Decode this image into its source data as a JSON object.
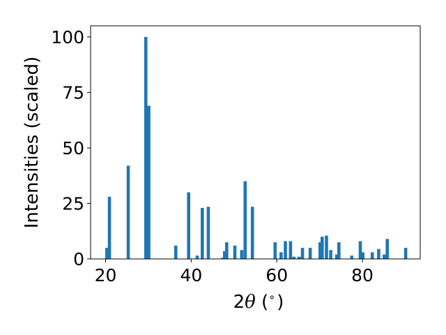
{
  "chart_data": {
    "type": "bar",
    "title": "",
    "xlabel_parts": {
      "prefix": "2",
      "symbol": "θ",
      "suffix": " (",
      "degree": "∘",
      "close": ")"
    },
    "ylabel": "Intensities (scaled)",
    "xlim": [
      16.5,
      93.5
    ],
    "ylim": [
      0,
      105
    ],
    "x_ticks": [
      20,
      40,
      60,
      80
    ],
    "y_ticks": [
      0,
      25,
      50,
      75,
      100
    ],
    "bar_color": "#1f77b4",
    "grid": false,
    "points": [
      {
        "x": 20.3,
        "y": 5
      },
      {
        "x": 20.9,
        "y": 28
      },
      {
        "x": 25.3,
        "y": 42
      },
      {
        "x": 29.4,
        "y": 100
      },
      {
        "x": 30.1,
        "y": 69
      },
      {
        "x": 36.4,
        "y": 6
      },
      {
        "x": 39.4,
        "y": 30
      },
      {
        "x": 41.4,
        "y": 1.5
      },
      {
        "x": 42.6,
        "y": 23
      },
      {
        "x": 44.0,
        "y": 23.5
      },
      {
        "x": 47.3,
        "y": 0.5
      },
      {
        "x": 47.8,
        "y": 3.5
      },
      {
        "x": 48.3,
        "y": 7.5
      },
      {
        "x": 50.2,
        "y": 6
      },
      {
        "x": 51.8,
        "y": 4
      },
      {
        "x": 52.6,
        "y": 35
      },
      {
        "x": 54.3,
        "y": 23.5
      },
      {
        "x": 59.6,
        "y": 7.5
      },
      {
        "x": 61.0,
        "y": 3
      },
      {
        "x": 62.0,
        "y": 8
      },
      {
        "x": 63.2,
        "y": 8
      },
      {
        "x": 64.0,
        "y": 1
      },
      {
        "x": 65.2,
        "y": 1
      },
      {
        "x": 66.0,
        "y": 5
      },
      {
        "x": 67.8,
        "y": 5
      },
      {
        "x": 70.1,
        "y": 7.5
      },
      {
        "x": 70.6,
        "y": 10
      },
      {
        "x": 71.6,
        "y": 10.5
      },
      {
        "x": 72.6,
        "y": 4
      },
      {
        "x": 74.0,
        "y": 2
      },
      {
        "x": 74.5,
        "y": 7.5
      },
      {
        "x": 77.5,
        "y": 1.5
      },
      {
        "x": 79.5,
        "y": 8
      },
      {
        "x": 80.1,
        "y": 3
      },
      {
        "x": 82.3,
        "y": 3
      },
      {
        "x": 83.8,
        "y": 4.5
      },
      {
        "x": 85.1,
        "y": 2
      },
      {
        "x": 85.8,
        "y": 9
      },
      {
        "x": 90.1,
        "y": 5
      }
    ]
  }
}
